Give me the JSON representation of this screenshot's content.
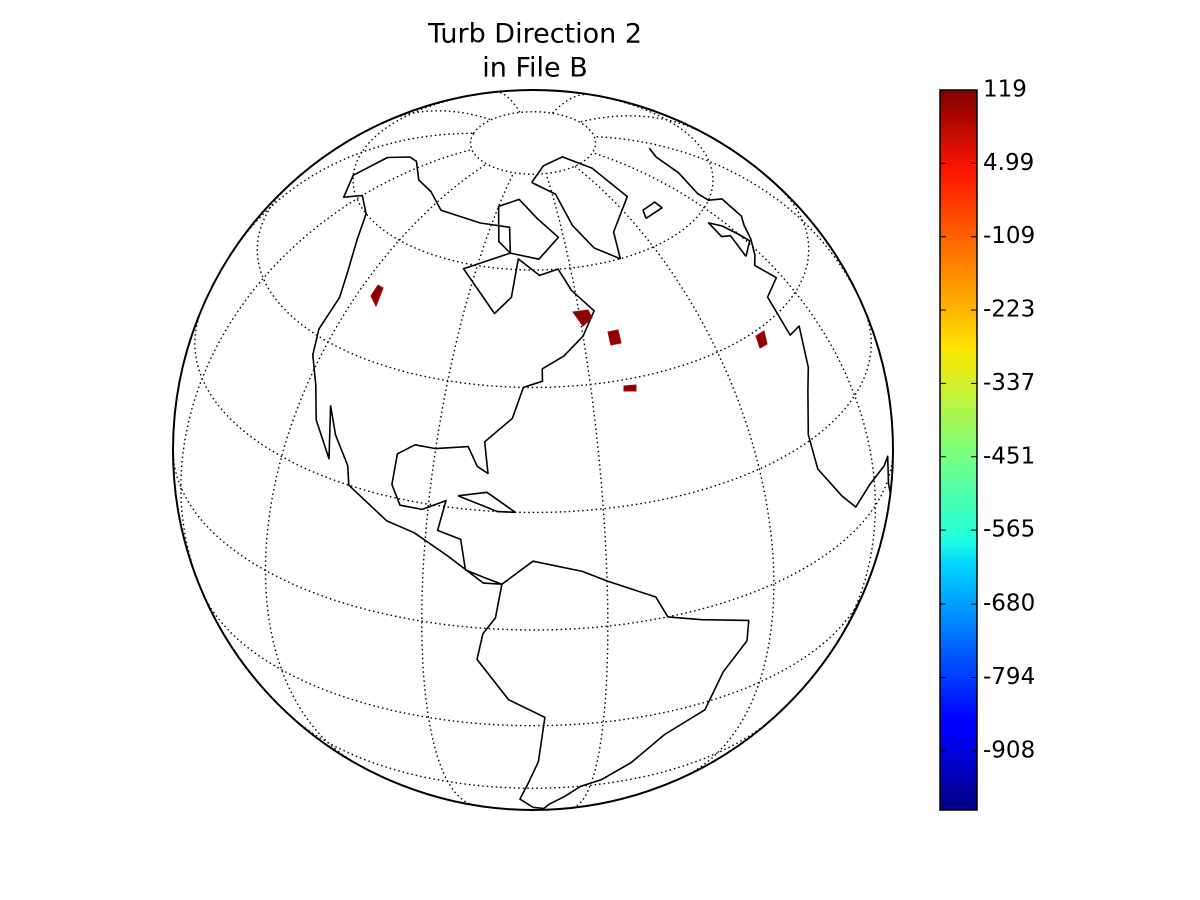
{
  "map": {
    "title_lines": [
      "Turb Direction 2",
      "in File B"
    ]
  },
  "colorbar": {
    "colormap": "jet",
    "lim": [
      -1000,
      119
    ],
    "ticks": [
      119,
      4.99,
      -109,
      -223,
      -337,
      -451,
      -565,
      -680,
      -794,
      -908
    ]
  }
}
